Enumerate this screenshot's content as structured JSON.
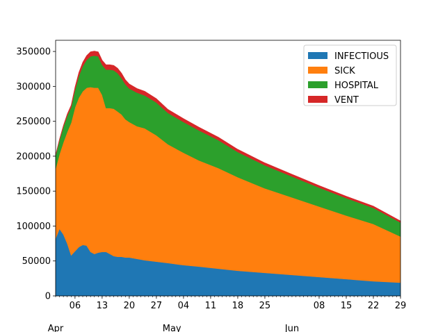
{
  "chart_data": {
    "type": "area",
    "stacked": true,
    "title": "",
    "xlabel": "",
    "ylabel": "",
    "grid": false,
    "legend_placement": "top-right",
    "xlim": [
      "2020-04-01",
      "2020-06-29"
    ],
    "ylim": [
      0,
      366000
    ],
    "y_ticks": [
      0,
      50000,
      100000,
      150000,
      200000,
      250000,
      300000,
      350000
    ],
    "y_tick_labels": [
      "0",
      "50000",
      "100000",
      "150000",
      "200000",
      "250000",
      "300000",
      "350000"
    ],
    "x_ticks": [
      {
        "date": "2020-04-06",
        "label": "06"
      },
      {
        "date": "2020-04-13",
        "label": "13"
      },
      {
        "date": "2020-04-20",
        "label": "20"
      },
      {
        "date": "2020-04-27",
        "label": "27"
      },
      {
        "date": "2020-05-04",
        "label": "04"
      },
      {
        "date": "2020-05-11",
        "label": "11"
      },
      {
        "date": "2020-05-18",
        "label": "18"
      },
      {
        "date": "2020-05-25",
        "label": "25"
      },
      {
        "date": "2020-06-08",
        "label": "08"
      },
      {
        "date": "2020-06-15",
        "label": "15"
      },
      {
        "date": "2020-06-22",
        "label": "22"
      },
      {
        "date": "2020-06-29",
        "label": "29"
      }
    ],
    "x_month_labels": [
      {
        "date": "2020-04-01",
        "label": "Apr"
      },
      {
        "date": "2020-05-01",
        "label": "May"
      },
      {
        "date": "2020-06-01",
        "label": "Jun"
      }
    ],
    "x": [
      "2020-04-01",
      "2020-04-02",
      "2020-04-03",
      "2020-04-04",
      "2020-04-05",
      "2020-04-06",
      "2020-04-07",
      "2020-04-08",
      "2020-04-09",
      "2020-04-10",
      "2020-04-11",
      "2020-04-12",
      "2020-04-13",
      "2020-04-14",
      "2020-04-15",
      "2020-04-16",
      "2020-04-17",
      "2020-04-18",
      "2020-04-19",
      "2020-04-20",
      "2020-04-22",
      "2020-04-24",
      "2020-04-27",
      "2020-04-30",
      "2020-05-04",
      "2020-05-08",
      "2020-05-13",
      "2020-05-18",
      "2020-05-25",
      "2020-06-01",
      "2020-06-08",
      "2020-06-15",
      "2020-06-22",
      "2020-06-29"
    ],
    "series": [
      {
        "name": "INFECTIOUS",
        "color": "#1f77b4",
        "values": [
          82000,
          96000,
          88000,
          75000,
          58000,
          64000,
          70000,
          73000,
          72000,
          63000,
          60000,
          62000,
          63000,
          63000,
          60000,
          57000,
          56000,
          56000,
          55000,
          55000,
          53000,
          51000,
          49000,
          47000,
          44000,
          42000,
          39000,
          36000,
          33000,
          30000,
          27000,
          24000,
          21000,
          19000
        ]
      },
      {
        "name": "SICK",
        "color": "#ff7f0e",
        "values": [
          100000,
          107000,
          132000,
          160000,
          190000,
          206000,
          214000,
          220000,
          226000,
          236000,
          238000,
          236000,
          225000,
          206000,
          209000,
          211000,
          208000,
          204000,
          198000,
          194000,
          190000,
          189000,
          181000,
          170000,
          161000,
          152000,
          144000,
          134000,
          121000,
          111000,
          101000,
          91000,
          82000,
          66000
        ]
      },
      {
        "name": "HOSPITAL",
        "color": "#2ca02c",
        "values": [
          19000,
          20000,
          22000,
          23000,
          22000,
          25000,
          31000,
          36000,
          40000,
          44000,
          46000,
          45000,
          43000,
          55000,
          55000,
          55000,
          55000,
          52000,
          50000,
          48000,
          48000,
          47000,
          47000,
          45000,
          44000,
          43000,
          40000,
          36000,
          33000,
          30000,
          27000,
          25000,
          23000,
          20000
        ]
      },
      {
        "name": "VENT",
        "color": "#d62728",
        "values": [
          1000,
          1500,
          2000,
          2500,
          3000,
          4000,
          5000,
          5500,
          6000,
          6500,
          6500,
          6500,
          6500,
          7000,
          7000,
          7000,
          7000,
          7000,
          6500,
          6500,
          6000,
          6000,
          5500,
          5000,
          4800,
          4500,
          4200,
          3900,
          3500,
          3200,
          3000,
          2700,
          2500,
          2400
        ]
      }
    ]
  }
}
